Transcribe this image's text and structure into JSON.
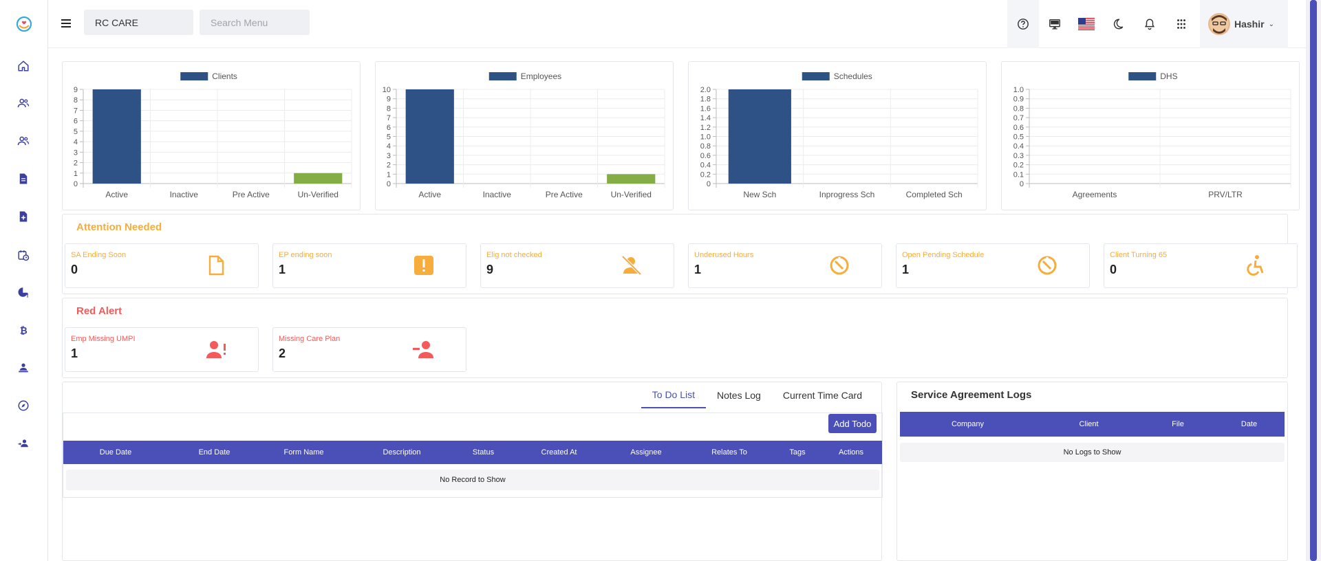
{
  "header": {
    "company_value": "RC CARE",
    "search_placeholder": "Search Menu",
    "user_name": "Hashir"
  },
  "colors": {
    "accent": "#4b4fb8",
    "bar_blue": "#2f5286",
    "bar_green": "#84ad45",
    "attention": "#f6ad3b",
    "alert": "#f55a5a"
  },
  "sidebar": {
    "items": [
      "home-icon",
      "clients-icon",
      "employees-icon",
      "document-icon",
      "add-document-icon",
      "calendar-clock-icon",
      "pie-alert-icon",
      "bitcoin-icon",
      "person-desk-icon",
      "compass-icon",
      "user-arrow-icon"
    ]
  },
  "chart_data": [
    {
      "type": "bar",
      "title": "Clients",
      "categories": [
        "Active",
        "Inactive",
        "Pre Active",
        "Un-Verified"
      ],
      "values": [
        9,
        0,
        0,
        1
      ],
      "ylim": [
        0,
        9
      ],
      "yticks": [
        "0",
        "1",
        "2",
        "3",
        "4",
        "5",
        "6",
        "7",
        "8",
        "9"
      ],
      "legend": "top",
      "grid": true
    },
    {
      "type": "bar",
      "title": "Employees",
      "categories": [
        "Active",
        "Inactive",
        "Pre Active",
        "Un-Verified"
      ],
      "values": [
        10,
        0,
        0,
        1
      ],
      "ylim": [
        0,
        10
      ],
      "yticks": [
        "0",
        "1",
        "2",
        "3",
        "4",
        "5",
        "6",
        "7",
        "8",
        "9",
        "10"
      ],
      "legend": "top",
      "grid": true
    },
    {
      "type": "bar",
      "title": "Schedules",
      "categories": [
        "New Sch",
        "Inprogress Sch",
        "Completed Sch"
      ],
      "values": [
        2,
        0,
        0
      ],
      "ylim": [
        0,
        2
      ],
      "yticks": [
        "0",
        "0.2",
        "0.4",
        "0.6",
        "0.8",
        "1.0",
        "1.2",
        "1.4",
        "1.6",
        "1.8",
        "2.0"
      ],
      "legend": "top",
      "grid": true
    },
    {
      "type": "bar",
      "title": "DHS",
      "categories": [
        "Agreements",
        "PRV/LTR"
      ],
      "values": [
        0,
        0
      ],
      "ylim": [
        0,
        1
      ],
      "yticks": [
        "0",
        "0.1",
        "0.2",
        "0.3",
        "0.4",
        "0.5",
        "0.6",
        "0.7",
        "0.8",
        "0.9",
        "1.0"
      ],
      "legend": "top",
      "grid": true
    }
  ],
  "attention": {
    "title": "Attention Needed",
    "cards": [
      {
        "label": "SA Ending Soon",
        "value": "0",
        "icon": "file-icon"
      },
      {
        "label": "EP ending soon",
        "value": "1",
        "icon": "exclamation-icon"
      },
      {
        "label": "Elig not checked",
        "value": "9",
        "icon": "user-slash-icon"
      },
      {
        "label": "Underused Hours",
        "value": "1",
        "icon": "clock-icon"
      },
      {
        "label": "Open Pending Schedule",
        "value": "1",
        "icon": "clock-icon"
      },
      {
        "label": "Client Turning 65",
        "value": "0",
        "icon": "wheelchair-icon"
      }
    ]
  },
  "red_alert": {
    "title": "Red Alert",
    "cards": [
      {
        "label": "Emp Missing UMPI",
        "value": "1",
        "icon": "user-exclamation-icon"
      },
      {
        "label": "Missing Care Plan",
        "value": "2",
        "icon": "user-minus-icon"
      }
    ]
  },
  "todo": {
    "tabs": [
      "To Do List",
      "Notes Log",
      "Current Time Card"
    ],
    "add_label": "Add Todo",
    "columns": [
      "Due Date",
      "End Date",
      "Form Name",
      "Description",
      "Status",
      "Created At",
      "Assignee",
      "Relates To",
      "Tags",
      "Actions"
    ],
    "empty": "No Record to Show"
  },
  "logs": {
    "title": "Service Agreement Logs",
    "columns": [
      "Company",
      "Client",
      "File",
      "Date"
    ],
    "empty": "No Logs to Show"
  }
}
